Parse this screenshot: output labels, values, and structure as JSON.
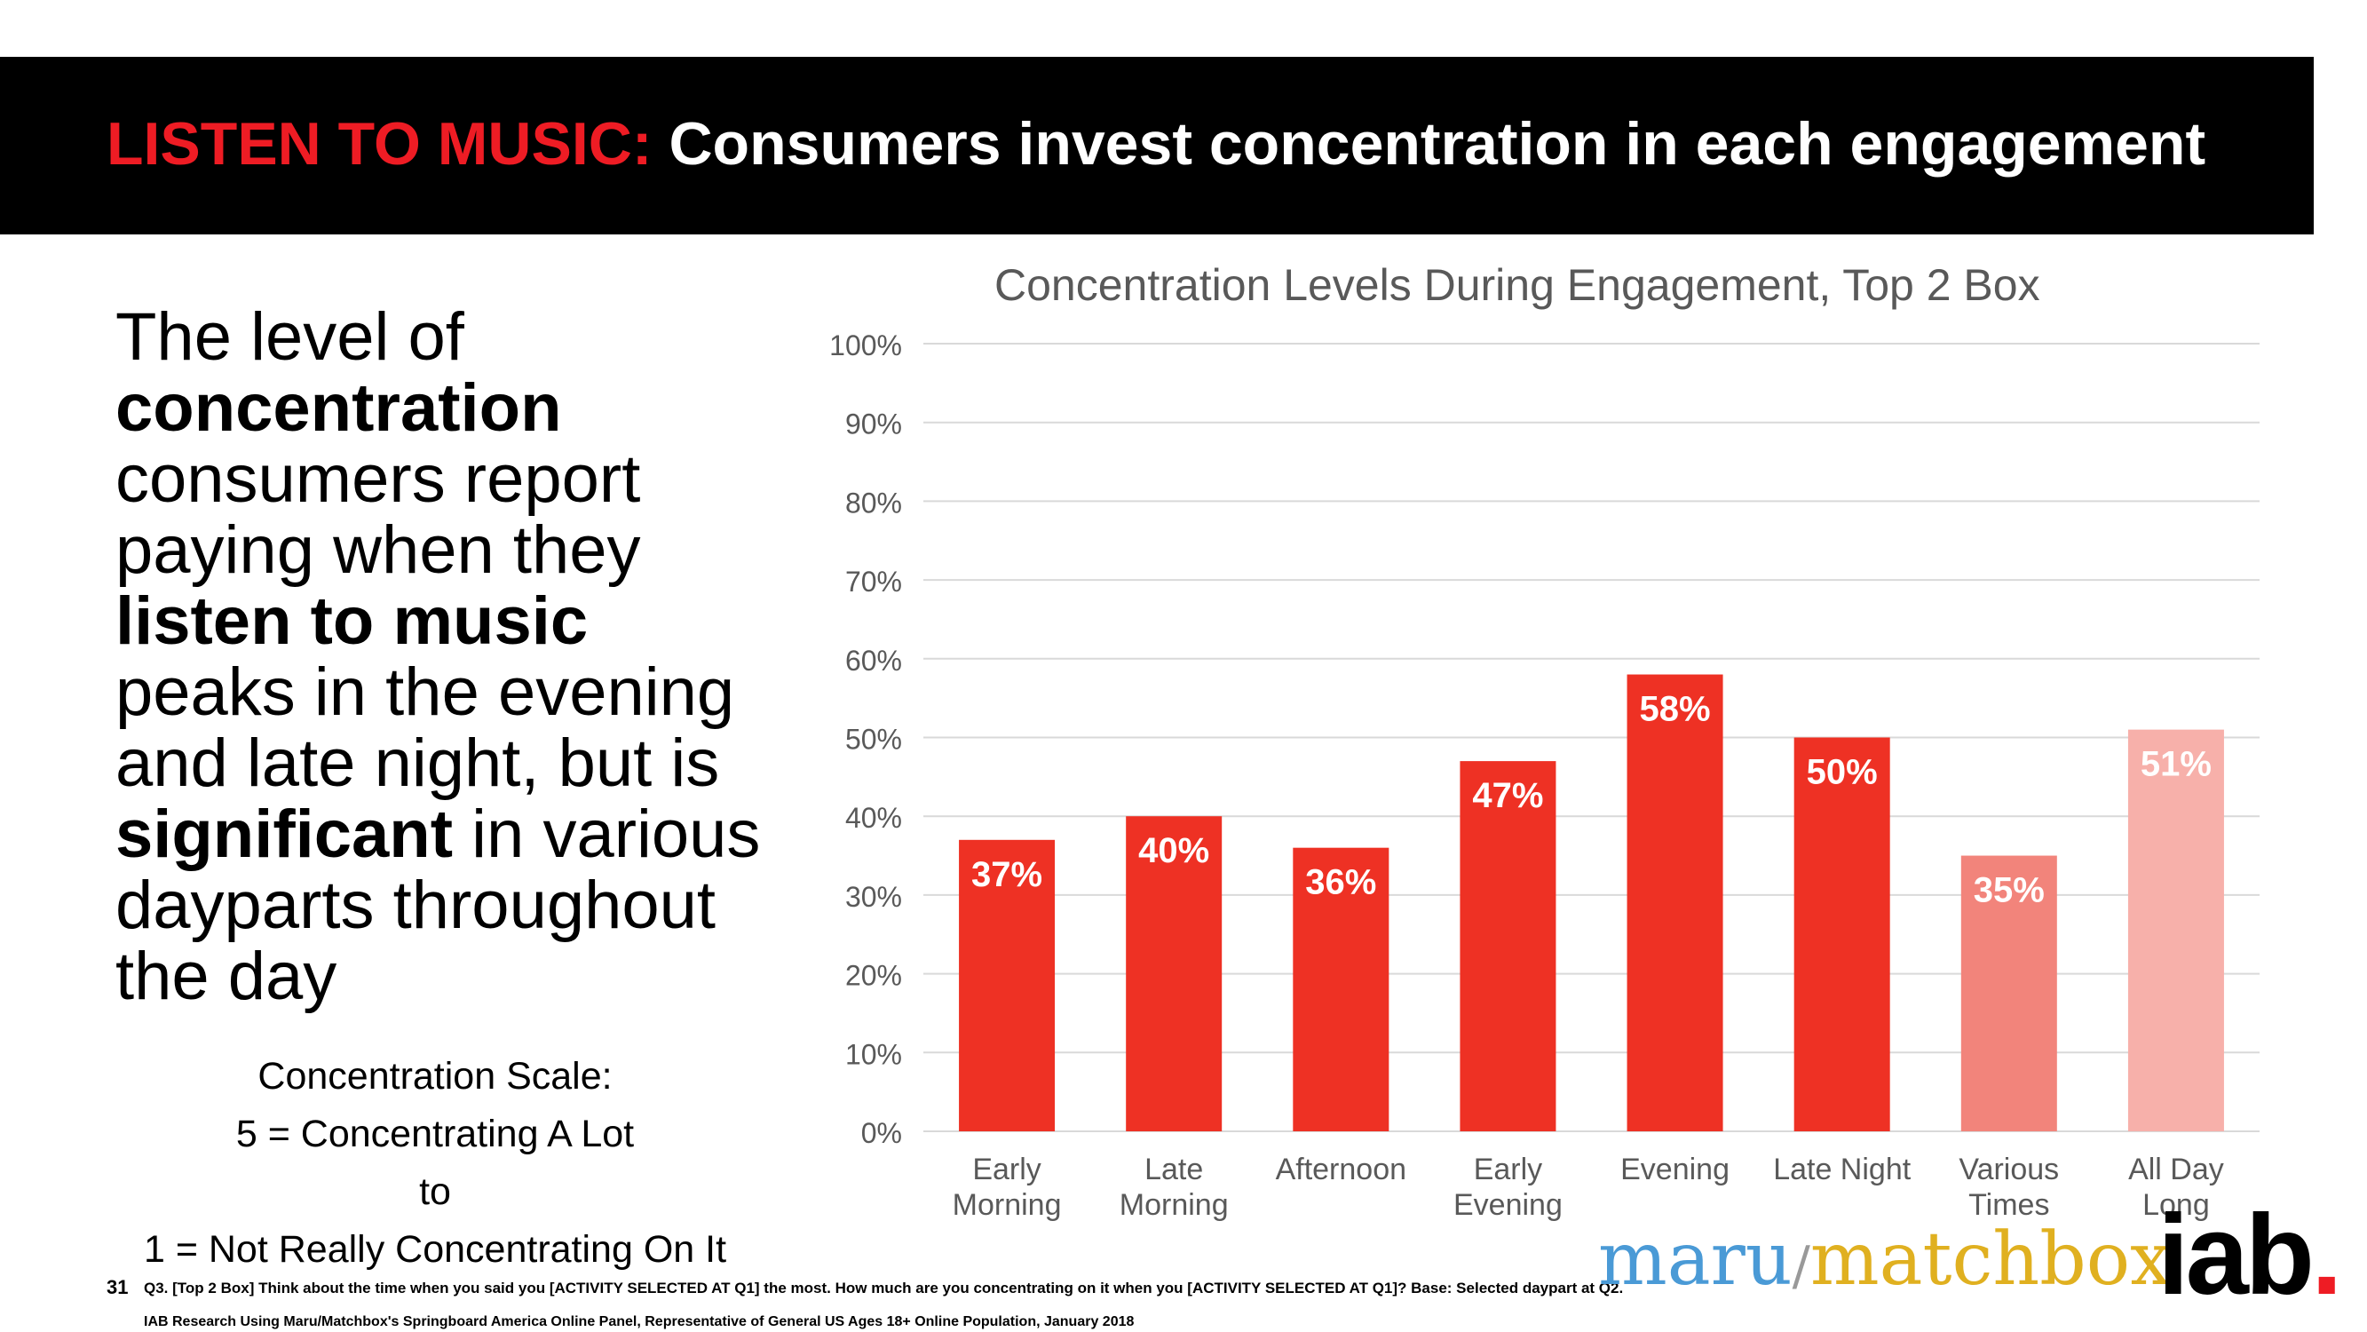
{
  "header": {
    "title_red": "LISTEN TO MUSIC:",
    "title_white": "Consumers invest concentration in each engagement"
  },
  "body": {
    "p1": "The level of",
    "p2": "concentration",
    "p3": "consumers report paying when they",
    "p4": "listen to music",
    "p5": "peaks in the evening and late night, but is",
    "p6": "significant",
    "p7": "in various dayparts throughout the day"
  },
  "scale": {
    "line1": "Concentration Scale:",
    "line2": "5 = Concentrating A Lot",
    "line3": "to",
    "line4": "1 = Not Really Concentrating On It"
  },
  "chart_data": {
    "type": "bar",
    "title": "Concentration Levels During Engagement, Top 2 Box",
    "categories": [
      [
        "Early",
        "Morning"
      ],
      [
        "Late",
        "Morning"
      ],
      [
        "Afternoon"
      ],
      [
        "Early",
        "Evening"
      ],
      [
        "Evening"
      ],
      [
        "Late Night"
      ],
      [
        "Various",
        "Times"
      ],
      [
        "All Day",
        "Long"
      ]
    ],
    "values": [
      37,
      40,
      36,
      47,
      58,
      50,
      35,
      51
    ],
    "data_labels": [
      "37%",
      "40%",
      "36%",
      "47%",
      "58%",
      "50%",
      "35%",
      "51%"
    ],
    "bar_colors": [
      "#ee3124",
      "#ee3124",
      "#ee3124",
      "#ee3124",
      "#ee3124",
      "#ee3124",
      "#f2847b",
      "#f7b0aa"
    ],
    "ylim": [
      0,
      100
    ],
    "yticks": [
      0,
      10,
      20,
      30,
      40,
      50,
      60,
      70,
      80,
      90,
      100
    ],
    "ytick_labels": [
      "0%",
      "10%",
      "20%",
      "30%",
      "40%",
      "50%",
      "60%",
      "70%",
      "80%",
      "90%",
      "100%"
    ],
    "grid": true
  },
  "footer": {
    "page_number": "31",
    "question": "Q3. [Top 2 Box] Think about the time when you said you [ACTIVITY SELECTED AT Q1] the most.  How much are you concentrating on it when you [ACTIVITY SELECTED AT Q1]? Base: Selected daypart at Q2.",
    "source": "IAB Research Using Maru/Matchbox's Springboard America Online Panel, Representative of General US Ages 18+ Online Population, January 2018"
  },
  "logos": {
    "maru": "maru",
    "slash": "/",
    "matchbox": "matchbox",
    "iab": "iab",
    "iab_dot": "."
  }
}
